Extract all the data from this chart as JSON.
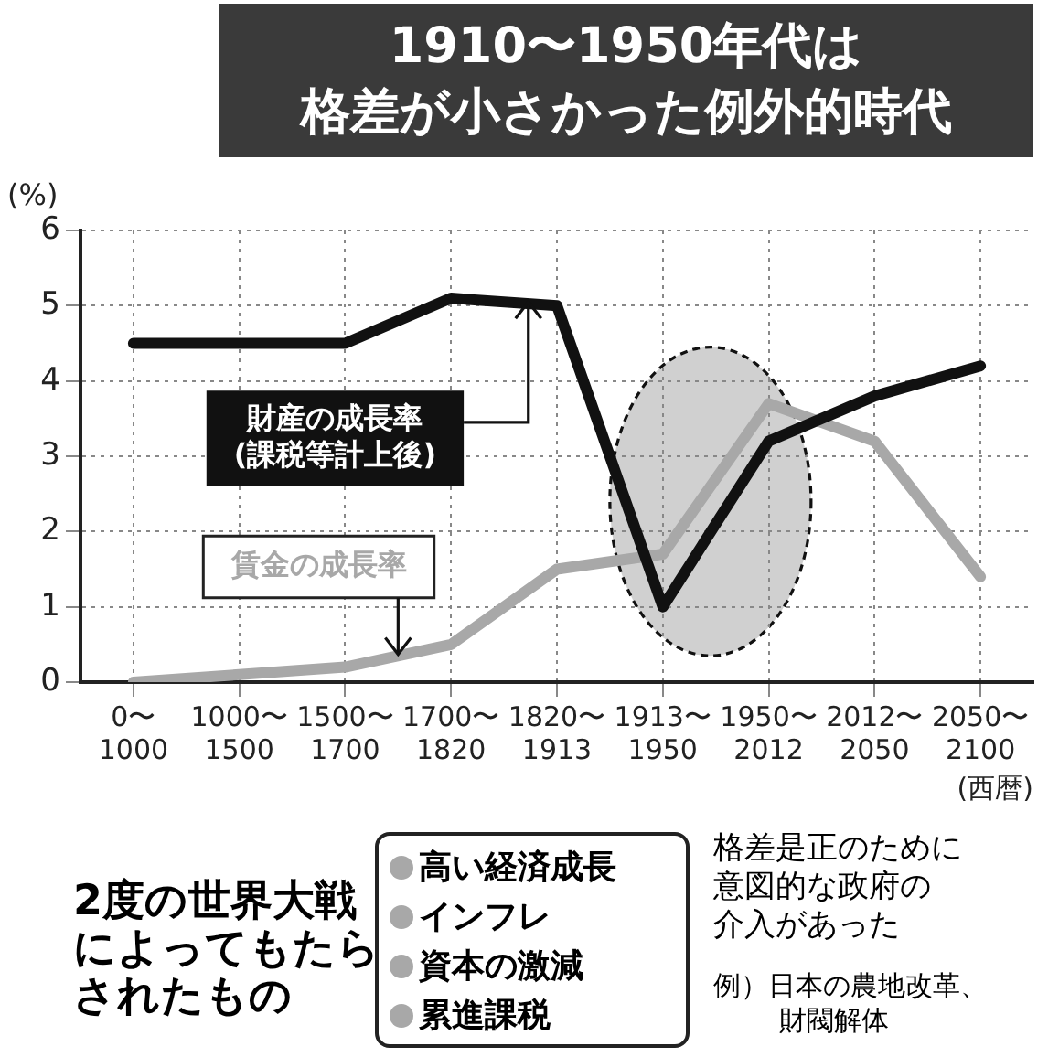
{
  "chart_data": {
    "type": "line",
    "title": "1910〜1950年代は",
    "subtitle": "格差が小さかった例外的時代",
    "ylabel": "(%)",
    "xlabel": "(西暦)",
    "categories": [
      "0〜\n1000",
      "1000〜\n1500",
      "1500〜\n1700",
      "1700〜\n1820",
      "1820〜\n1913",
      "1913〜\n1950",
      "1950〜\n2012",
      "2012〜\n2050",
      "2050〜\n2100"
    ],
    "series": [
      {
        "name": "財産の成長率\n(課税等計上後)",
        "color": "#111111",
        "values": [
          4.5,
          4.5,
          4.5,
          5.1,
          5.0,
          1.0,
          3.2,
          3.8,
          4.2
        ]
      },
      {
        "name": "賃金の成長率",
        "color": "#a8a8a8",
        "values": [
          0.0,
          0.1,
          0.2,
          0.5,
          1.5,
          1.7,
          3.7,
          3.2,
          1.4
        ]
      }
    ],
    "ylim": [
      0,
      6
    ],
    "yticks": [
      0,
      1,
      2,
      3,
      4,
      5,
      6
    ],
    "grid": true,
    "legend": false,
    "marker": "none",
    "line_style": "solid",
    "annotations": [
      "2度の世界大戦",
      "によってもたら",
      "されたもの",
      "高い経済成長",
      "インフレ",
      "資本の激減",
      "累進課税",
      "格差是正のために",
      "意図的な政府の",
      "介入があった",
      "例）日本の農地改革、",
      "財閥解体"
    ]
  }
}
